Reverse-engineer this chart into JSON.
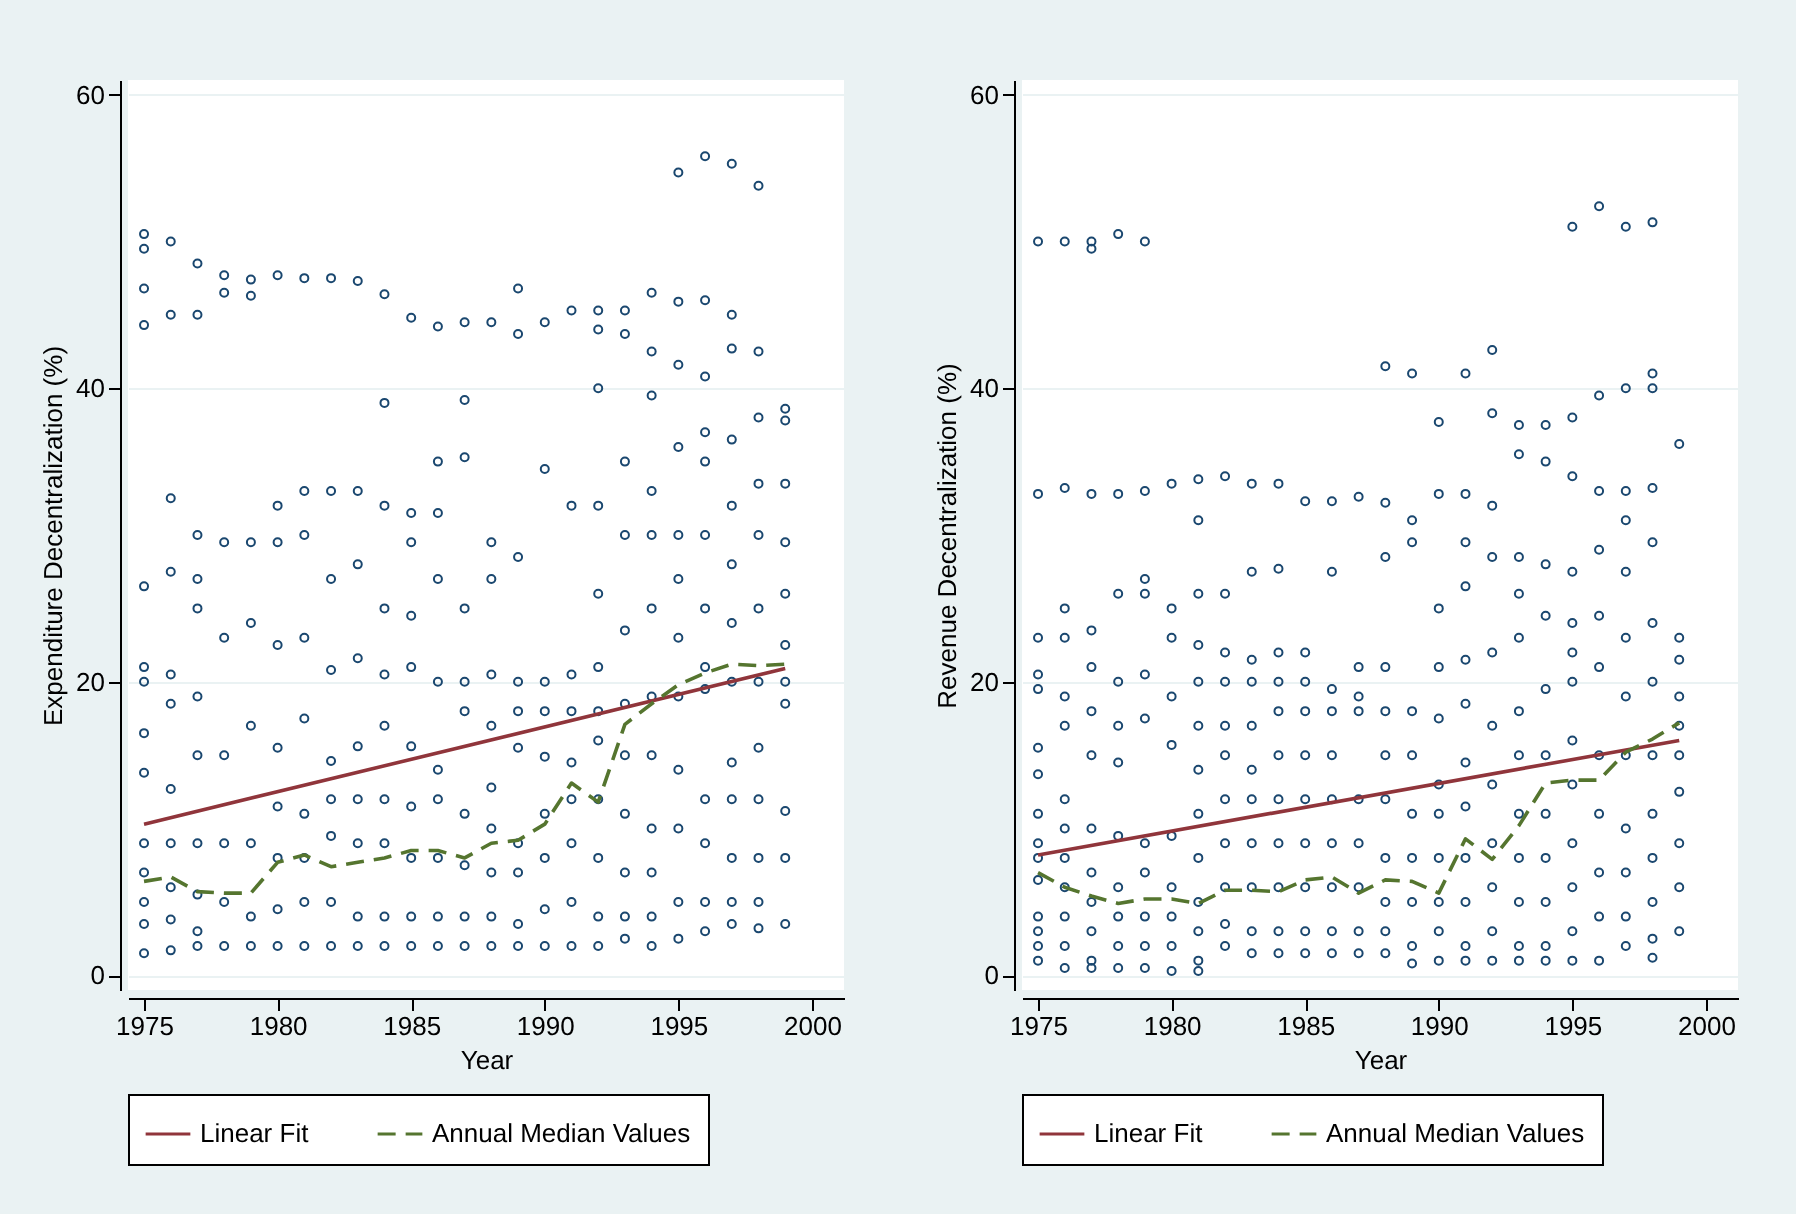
{
  "chart_data": [
    {
      "type": "scatter",
      "xlabel": "Year",
      "ylabel": "Expenditure Decentralization (%)",
      "xlim": [
        1974.4,
        2001.2
      ],
      "xticks": [
        1975,
        1980,
        1985,
        1990,
        1995,
        2000
      ],
      "ylim": [
        -1,
        61
      ],
      "yticks": [
        0,
        20,
        40,
        60
      ],
      "grid": "y",
      "legend": "bottom",
      "series": [
        {
          "type": "scatter",
          "marker": "circle",
          "color": "#1a476f",
          "x": [
            1975,
            1975,
            1975,
            1975,
            1975,
            1975,
            1975,
            1975,
            1975,
            1975,
            1975,
            1975,
            1975,
            1975,
            1976,
            1976,
            1976,
            1976,
            1976,
            1976,
            1976,
            1976,
            1976,
            1976,
            1976,
            1977,
            1977,
            1977,
            1977,
            1977,
            1977,
            1977,
            1977,
            1977,
            1977,
            1977,
            1978,
            1978,
            1978,
            1978,
            1978,
            1978,
            1978,
            1978,
            1979,
            1979,
            1979,
            1979,
            1979,
            1979,
            1979,
            1979,
            1980,
            1980,
            1980,
            1980,
            1980,
            1980,
            1980,
            1980,
            1980,
            1981,
            1981,
            1981,
            1981,
            1981,
            1981,
            1981,
            1981,
            1981,
            1982,
            1982,
            1982,
            1982,
            1982,
            1982,
            1982,
            1982,
            1982,
            1983,
            1983,
            1983,
            1983,
            1983,
            1983,
            1983,
            1983,
            1983,
            1984,
            1984,
            1984,
            1984,
            1984,
            1984,
            1984,
            1984,
            1984,
            1984,
            1985,
            1985,
            1985,
            1985,
            1985,
            1985,
            1985,
            1985,
            1985,
            1985,
            1986,
            1986,
            1986,
            1986,
            1986,
            1986,
            1986,
            1986,
            1986,
            1986,
            1987,
            1987,
            1987,
            1987,
            1987,
            1987,
            1987,
            1987,
            1987,
            1987,
            1988,
            1988,
            1988,
            1988,
            1988,
            1988,
            1988,
            1988,
            1988,
            1988,
            1989,
            1989,
            1989,
            1989,
            1989,
            1989,
            1989,
            1989,
            1989,
            1989,
            1990,
            1990,
            1990,
            1990,
            1990,
            1990,
            1990,
            1990,
            1990,
            1991,
            1991,
            1991,
            1991,
            1991,
            1991,
            1991,
            1991,
            1991,
            1992,
            1992,
            1992,
            1992,
            1992,
            1992,
            1992,
            1992,
            1992,
            1992,
            1992,
            1992,
            1993,
            1993,
            1993,
            1993,
            1993,
            1993,
            1993,
            1993,
            1993,
            1993,
            1993,
            1994,
            1994,
            1994,
            1994,
            1994,
            1994,
            1994,
            1994,
            1994,
            1994,
            1994,
            1994,
            1995,
            1995,
            1995,
            1995,
            1995,
            1995,
            1995,
            1995,
            1995,
            1995,
            1995,
            1995,
            1996,
            1996,
            1996,
            1996,
            1996,
            1996,
            1996,
            1996,
            1996,
            1996,
            1996,
            1996,
            1996,
            1997,
            1997,
            1997,
            1997,
            1997,
            1997,
            1997,
            1997,
            1997,
            1997,
            1997,
            1997,
            1997,
            1998,
            1998,
            1998,
            1998,
            1998,
            1998,
            1998,
            1998,
            1998,
            1998,
            1998,
            1998,
            1999,
            1999,
            1999,
            1999,
            1999,
            1999,
            1999,
            1999,
            1999,
            1999,
            1999
          ],
          "values": [
            50.5,
            49.5,
            46.8,
            44.3,
            26.5,
            21,
            20,
            16.5,
            13.8,
            9,
            7,
            5,
            3.5,
            1.5,
            50,
            45,
            32.5,
            27.5,
            20.5,
            18.5,
            12.7,
            9,
            6,
            3.8,
            1.7,
            48.5,
            45,
            30,
            27,
            25,
            19,
            15,
            9,
            5.5,
            3,
            2,
            47.7,
            46.5,
            29.5,
            23,
            15,
            9,
            5,
            2,
            47.4,
            46.3,
            29.5,
            24,
            17,
            9,
            4,
            2,
            47.7,
            32,
            29.5,
            22.5,
            15.5,
            11.5,
            8,
            4.5,
            2,
            47.5,
            33,
            30,
            23,
            17.5,
            11,
            8,
            5,
            2,
            47.5,
            33,
            27,
            20.8,
            14.6,
            12,
            9.5,
            5,
            2,
            47.3,
            33,
            28,
            21.6,
            15.6,
            12,
            9,
            4,
            2,
            46.4,
            39,
            32,
            25,
            20.5,
            17,
            12,
            9,
            4,
            2,
            44.8,
            31.5,
            29.5,
            24.5,
            21,
            15.6,
            11.5,
            8,
            4,
            2,
            44.2,
            35,
            31.5,
            27,
            20,
            14,
            12,
            8,
            4,
            2,
            44.5,
            39.2,
            35.3,
            25,
            20,
            18,
            11,
            7.5,
            4,
            2,
            44.5,
            29.5,
            27,
            20.5,
            17,
            12.8,
            10,
            7,
            4,
            2,
            46.8,
            43.7,
            28.5,
            20,
            18,
            15.5,
            9,
            7,
            3.5,
            2,
            44.5,
            34.5,
            20,
            18,
            14.9,
            11,
            8,
            4.5,
            2,
            45.3,
            32,
            20.5,
            18,
            14.5,
            12,
            9,
            5,
            2,
            45.3,
            44,
            40,
            32,
            26,
            21,
            18,
            16,
            12,
            8,
            4,
            2,
            45.3,
            43.7,
            35,
            30,
            23.5,
            18.5,
            15,
            11,
            7,
            4,
            2.5,
            46.5,
            42.5,
            39.5,
            33,
            30,
            25,
            19,
            15,
            10,
            7,
            4,
            2,
            54.7,
            45.9,
            41.6,
            36,
            30,
            27,
            23,
            19,
            14,
            10,
            5,
            2.5,
            55.8,
            46,
            40.8,
            37,
            35,
            30,
            25,
            21,
            19.5,
            12,
            9,
            5,
            3,
            55.3,
            45,
            42.7,
            36.5,
            32,
            28,
            24,
            20,
            14.5,
            12,
            8,
            5,
            3.5,
            53.8,
            42.5,
            38,
            33.5,
            30,
            25,
            20,
            15.5,
            12,
            8,
            5,
            3.2,
            38.6,
            37.8,
            33.5,
            29.5,
            26,
            22.5,
            20,
            18.5,
            11.2,
            8,
            3.5
          ]
        },
        {
          "type": "line",
          "name": "Linear Fit",
          "color": "#90353b",
          "line_style": "solid",
          "x": [
            1975,
            1999
          ],
          "values": [
            10.3,
            20.9
          ]
        },
        {
          "type": "line",
          "name": "Annual Median Values",
          "color": "#55752f",
          "line_style": "dashed",
          "x": [
            1975,
            1976,
            1977,
            1978,
            1979,
            1980,
            1981,
            1982,
            1983,
            1984,
            1985,
            1986,
            1987,
            1988,
            1989,
            1990,
            1991,
            1992,
            1993,
            1994,
            1995,
            1996,
            1997,
            1998,
            1999
          ],
          "values": [
            6.4,
            6.7,
            5.7,
            5.6,
            5.6,
            7.7,
            8.2,
            7.4,
            7.7,
            8.0,
            8.5,
            8.5,
            8.0,
            9.0,
            9.2,
            10.3,
            13.1,
            11.8,
            17.1,
            18.5,
            19.8,
            20.6,
            21.2,
            21.1,
            21.2
          ]
        }
      ]
    },
    {
      "type": "scatter",
      "xlabel": "Year",
      "ylabel": "Revenue Decentralization (%)",
      "xlim": [
        1974.4,
        2001.2
      ],
      "xticks": [
        1975,
        1980,
        1985,
        1990,
        1995,
        2000
      ],
      "ylim": [
        -1,
        61
      ],
      "yticks": [
        0,
        20,
        40,
        60
      ],
      "grid": "y",
      "legend": "bottom",
      "series": [
        {
          "type": "scatter",
          "marker": "circle",
          "color": "#1a476f",
          "x": [
            1975,
            1975,
            1975,
            1975,
            1975,
            1975,
            1975,
            1975,
            1975,
            1975,
            1975,
            1975,
            1975,
            1975,
            1975,
            1976,
            1976,
            1976,
            1976,
            1976,
            1976,
            1976,
            1976,
            1976,
            1976,
            1976,
            1976,
            1976,
            1977,
            1977,
            1977,
            1977,
            1977,
            1977,
            1977,
            1977,
            1977,
            1977,
            1977,
            1977,
            1977,
            1978,
            1978,
            1978,
            1978,
            1978,
            1978,
            1978,
            1978,
            1978,
            1978,
            1978,
            1979,
            1979,
            1979,
            1979,
            1979,
            1979,
            1979,
            1979,
            1979,
            1979,
            1979,
            1980,
            1980,
            1980,
            1980,
            1980,
            1980,
            1980,
            1980,
            1980,
            1980,
            1981,
            1981,
            1981,
            1981,
            1981,
            1981,
            1981,
            1981,
            1981,
            1981,
            1981,
            1981,
            1981,
            1982,
            1982,
            1982,
            1982,
            1982,
            1982,
            1982,
            1982,
            1982,
            1982,
            1982,
            1983,
            1983,
            1983,
            1983,
            1983,
            1983,
            1983,
            1983,
            1983,
            1983,
            1983,
            1984,
            1984,
            1984,
            1984,
            1984,
            1984,
            1984,
            1984,
            1984,
            1984,
            1984,
            1985,
            1985,
            1985,
            1985,
            1985,
            1985,
            1985,
            1985,
            1985,
            1985,
            1986,
            1986,
            1986,
            1986,
            1986,
            1986,
            1986,
            1986,
            1986,
            1986,
            1987,
            1987,
            1987,
            1987,
            1987,
            1987,
            1987,
            1987,
            1987,
            1988,
            1988,
            1988,
            1988,
            1988,
            1988,
            1988,
            1988,
            1988,
            1988,
            1988,
            1989,
            1989,
            1989,
            1989,
            1989,
            1989,
            1989,
            1989,
            1989,
            1989,
            1990,
            1990,
            1990,
            1990,
            1990,
            1990,
            1990,
            1990,
            1990,
            1990,
            1990,
            1991,
            1991,
            1991,
            1991,
            1991,
            1991,
            1991,
            1991,
            1991,
            1991,
            1991,
            1991,
            1992,
            1992,
            1992,
            1992,
            1992,
            1992,
            1992,
            1992,
            1992,
            1992,
            1992,
            1993,
            1993,
            1993,
            1993,
            1993,
            1993,
            1993,
            1993,
            1993,
            1993,
            1993,
            1993,
            1994,
            1994,
            1994,
            1994,
            1994,
            1994,
            1994,
            1994,
            1994,
            1994,
            1994,
            1995,
            1995,
            1995,
            1995,
            1995,
            1995,
            1995,
            1995,
            1995,
            1995,
            1995,
            1995,
            1995,
            1996,
            1996,
            1996,
            1996,
            1996,
            1996,
            1996,
            1996,
            1996,
            1996,
            1996,
            1997,
            1997,
            1997,
            1997,
            1997,
            1997,
            1997,
            1997,
            1997,
            1997,
            1997,
            1997,
            1998,
            1998,
            1998,
            1998,
            1998,
            1998,
            1998,
            1998,
            1998,
            1998,
            1998,
            1998,
            1998,
            1999,
            1999,
            1999,
            1999,
            1999,
            1999,
            1999,
            1999,
            1999,
            1999
          ],
          "values": [
            50,
            32.8,
            23,
            20.5,
            19.5,
            15.5,
            13.7,
            11,
            9,
            8,
            6.5,
            4,
            3,
            2,
            1,
            50,
            33.2,
            25,
            23,
            19,
            17,
            12,
            10,
            8,
            6,
            4,
            2,
            0.5,
            50,
            49.5,
            32.8,
            23.5,
            21,
            18,
            15,
            10,
            7,
            5,
            3,
            1,
            0.5,
            50.5,
            32.8,
            26,
            20,
            17,
            14.5,
            9.5,
            6,
            4,
            2,
            0.5,
            50,
            33,
            27,
            26,
            20.5,
            17.5,
            9,
            7,
            4,
            2,
            0.5,
            33.5,
            25,
            23,
            19,
            15.7,
            9.5,
            6,
            4,
            2,
            0.3,
            33.8,
            31,
            26,
            22.5,
            20,
            17,
            14,
            11,
            8,
            5,
            3,
            1,
            0.3,
            34,
            26,
            22,
            20,
            17,
            15,
            12,
            9,
            6,
            3.5,
            2,
            33.5,
            27.5,
            21.5,
            20,
            17,
            14,
            12,
            9,
            6,
            3,
            1.5,
            33.5,
            27.7,
            22,
            20,
            18,
            15,
            12,
            9,
            6,
            3,
            1.5,
            32.3,
            22,
            20,
            18,
            15,
            12,
            9,
            6,
            3,
            1.5,
            32.3,
            27.5,
            19.5,
            18,
            15,
            12,
            9,
            6,
            3,
            1.5,
            32.6,
            21,
            19,
            18,
            12,
            9,
            6,
            3,
            1.5,
            41.5,
            32.2,
            28.5,
            21,
            18,
            15,
            12,
            8,
            5,
            3,
            1.5,
            41,
            31,
            29.5,
            18,
            15,
            11,
            8,
            5,
            2,
            0.8,
            37.7,
            32.8,
            25,
            21,
            17.5,
            13,
            11,
            8,
            5,
            3,
            1,
            41,
            32.8,
            29.5,
            26.5,
            21.5,
            18.5,
            14.5,
            11.5,
            8,
            5,
            2,
            1,
            42.6,
            38.3,
            32,
            28.5,
            22,
            17,
            13,
            9,
            6,
            3,
            1,
            37.5,
            35.5,
            28.5,
            26,
            23,
            18,
            15,
            11,
            8,
            5,
            2,
            1,
            37.5,
            35,
            28,
            24.5,
            19.5,
            15,
            11,
            8,
            5,
            2,
            1,
            51,
            38,
            34,
            27.5,
            24,
            22,
            20,
            16,
            13,
            9,
            6,
            3,
            1,
            52.4,
            39.5,
            33,
            29,
            24.5,
            21,
            15,
            11,
            7,
            4,
            1,
            51,
            40,
            33,
            31,
            27.5,
            23,
            19,
            15,
            10,
            7,
            4,
            2,
            51.3,
            41,
            40,
            33.2,
            29.5,
            24,
            20,
            15,
            11,
            8,
            5,
            2.5,
            1.2,
            36.2,
            23,
            21.5,
            19,
            17,
            15,
            12.5,
            9,
            6,
            3
          ]
        },
        {
          "type": "line",
          "name": "Linear Fit",
          "color": "#90353b",
          "line_style": "solid",
          "x": [
            1975,
            1999
          ],
          "values": [
            8.2,
            16.0
          ]
        },
        {
          "type": "line",
          "name": "Annual Median Values",
          "color": "#55752f",
          "line_style": "dashed",
          "x": [
            1975,
            1976,
            1977,
            1978,
            1979,
            1980,
            1981,
            1982,
            1983,
            1984,
            1985,
            1986,
            1987,
            1988,
            1989,
            1990,
            1991,
            1992,
            1993,
            1994,
            1995,
            1996,
            1997,
            1998,
            1999
          ],
          "values": [
            7.0,
            6.0,
            5.4,
            4.9,
            5.2,
            5.2,
            4.9,
            5.8,
            5.8,
            5.7,
            6.5,
            6.7,
            5.6,
            6.5,
            6.4,
            5.6,
            9.3,
            7.9,
            10.2,
            13.1,
            13.3,
            13.3,
            15.2,
            16.1,
            17.2
          ]
        }
      ]
    }
  ]
}
